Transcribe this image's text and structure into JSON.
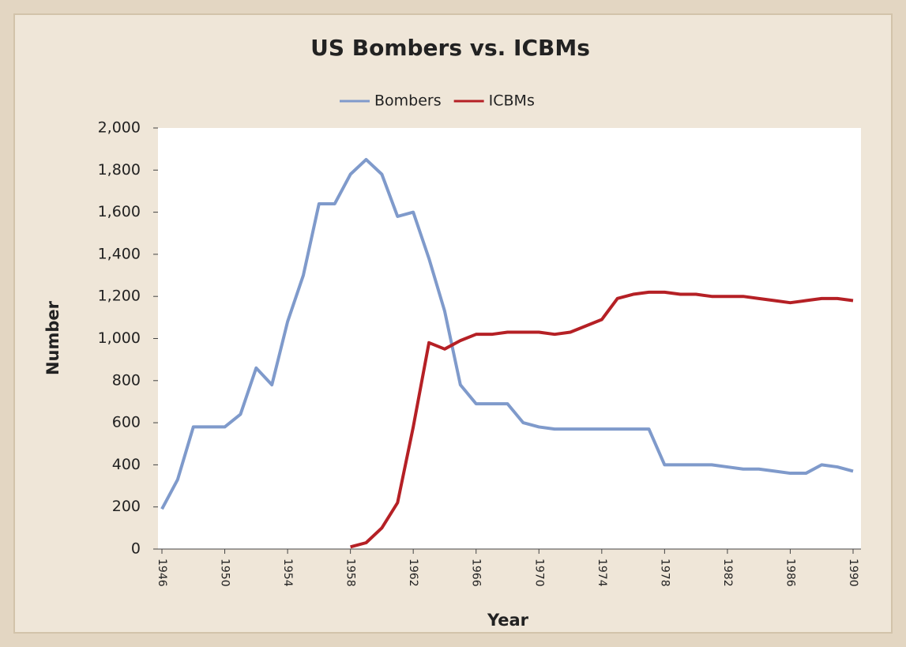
{
  "chart_data": {
    "type": "line",
    "title": "US Bombers vs. ICBMs",
    "x_label": "Year",
    "y_label": "Number",
    "x": [
      1946,
      1947,
      1948,
      1949,
      1950,
      1951,
      1952,
      1953,
      1954,
      1955,
      1956,
      1957,
      1958,
      1959,
      1960,
      1961,
      1962,
      1963,
      1964,
      1965,
      1966,
      1967,
      1968,
      1969,
      1970,
      1971,
      1972,
      1973,
      1974,
      1975,
      1976,
      1977,
      1978,
      1979,
      1980,
      1981,
      1982,
      1983,
      1984,
      1985,
      1986,
      1987,
      1988,
      1989,
      1990
    ],
    "series": [
      {
        "name": "Bombers",
        "color": "#7f9acb",
        "values": [
          190,
          330,
          580,
          580,
          580,
          640,
          860,
          780,
          1080,
          1300,
          1640,
          1640,
          1780,
          1850,
          1780,
          1580,
          1600,
          1380,
          1130,
          780,
          690,
          690,
          690,
          600,
          580,
          570,
          570,
          570,
          570,
          570,
          570,
          570,
          400,
          400,
          400,
          400,
          390,
          380,
          380,
          370,
          360,
          360,
          400,
          390,
          370
        ]
      },
      {
        "name": "ICBMs",
        "color": "#b52025",
        "values": [
          null,
          null,
          null,
          null,
          null,
          null,
          null,
          null,
          null,
          null,
          null,
          null,
          10,
          30,
          100,
          220,
          580,
          980,
          950,
          990,
          1020,
          1020,
          1030,
          1030,
          1030,
          1020,
          1030,
          1060,
          1090,
          1190,
          1210,
          1220,
          1220,
          1210,
          1210,
          1200,
          1200,
          1200,
          1190,
          1180,
          1170,
          1180,
          1190,
          1190,
          1180
        ]
      }
    ],
    "xlim": [
      1946,
      1990
    ],
    "xticks": [
      1946,
      1950,
      1954,
      1958,
      1962,
      1966,
      1970,
      1974,
      1978,
      1982,
      1986,
      1990
    ],
    "ylim": [
      0,
      2000
    ],
    "yticks": [
      0,
      200,
      400,
      600,
      800,
      {
        "value": 1000,
        "label": "1,000"
      },
      {
        "value": 1200,
        "label": "1,200"
      },
      {
        "value": 1400,
        "label": "1,400"
      },
      {
        "value": 1600,
        "label": "1,600"
      },
      {
        "value": 1800,
        "label": "1,800"
      },
      {
        "value": 2000,
        "label": "2,000"
      }
    ],
    "legend": "top"
  }
}
